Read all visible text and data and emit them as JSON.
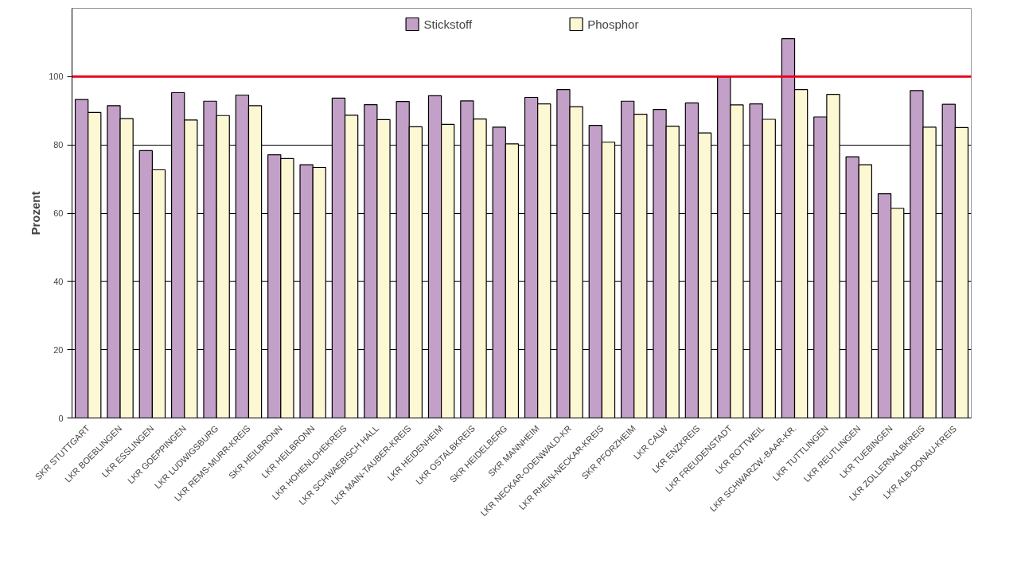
{
  "chart_data": {
    "type": "bar",
    "ylabel": "Prozent",
    "categories": [
      "SKR STUTTGART",
      "LKR BOEBLINGEN",
      "LKR ESSLINGEN",
      "LKR GOEPPINGEN",
      "LKR LUDWIGSBURG",
      "LKR REMS-MURR-KREIS",
      "SKR HEILBRONN",
      "LKR HEILBRONN",
      "LKR HOHENLOHEKREIS",
      "LKR SCHWAEBISCH HALL",
      "LKR MAIN-TAUBER-KREIS",
      "LKR HEIDENHEIM",
      "LKR OSTALBKREIS",
      "SKR HEIDELBERG",
      "SKR MANNHEIM",
      "LKR NECKAR-ODENWALD-KR",
      "LKR RHEIN-NECKAR-KREIS",
      "SKR PFORZHEIM",
      "LKR CALW",
      "LKR ENZKREIS",
      "LKR FREUDENSTADT",
      "LKR ROTTWEIL",
      "LKR SCHWARZW.-BAAR-KR.",
      "LKR TUTTLINGEN",
      "LKR REUTLINGEN",
      "LKR TUEBINGEN",
      "LKR ZOLLERNALBKREIS",
      "LKR ALB-DONAU-KREIS"
    ],
    "series": [
      {
        "name": "Stickstoff",
        "color": "#c3a0c8",
        "values": [
          93.3,
          91.5,
          78.3,
          95.3,
          92.8,
          94.6,
          77.1,
          74.2,
          93.7,
          91.8,
          92.7,
          94.4,
          92.9,
          85.2,
          93.9,
          96.2,
          85.7,
          92.8,
          90.4,
          92.3,
          99.9,
          92.0,
          111.1,
          88.2,
          76.5,
          65.7,
          95.9,
          91.9
        ]
      },
      {
        "name": "Phosphor",
        "color": "#fdf8d4",
        "values": [
          89.5,
          87.7,
          72.7,
          87.3,
          88.6,
          91.5,
          76.0,
          73.4,
          88.7,
          87.4,
          85.3,
          86.0,
          87.6,
          80.3,
          92.0,
          91.2,
          80.8,
          89.0,
          85.5,
          83.5,
          91.7,
          87.5,
          96.2,
          94.8,
          74.2,
          61.4,
          85.2,
          85.1
        ]
      }
    ],
    "ylim": [
      0,
      120
    ],
    "yticks": [
      0,
      20,
      40,
      60,
      80,
      100
    ],
    "grid": "y",
    "legend": "top",
    "ref_lines": [
      {
        "axis": "y",
        "value": 100,
        "color": "#e8001c"
      }
    ]
  }
}
